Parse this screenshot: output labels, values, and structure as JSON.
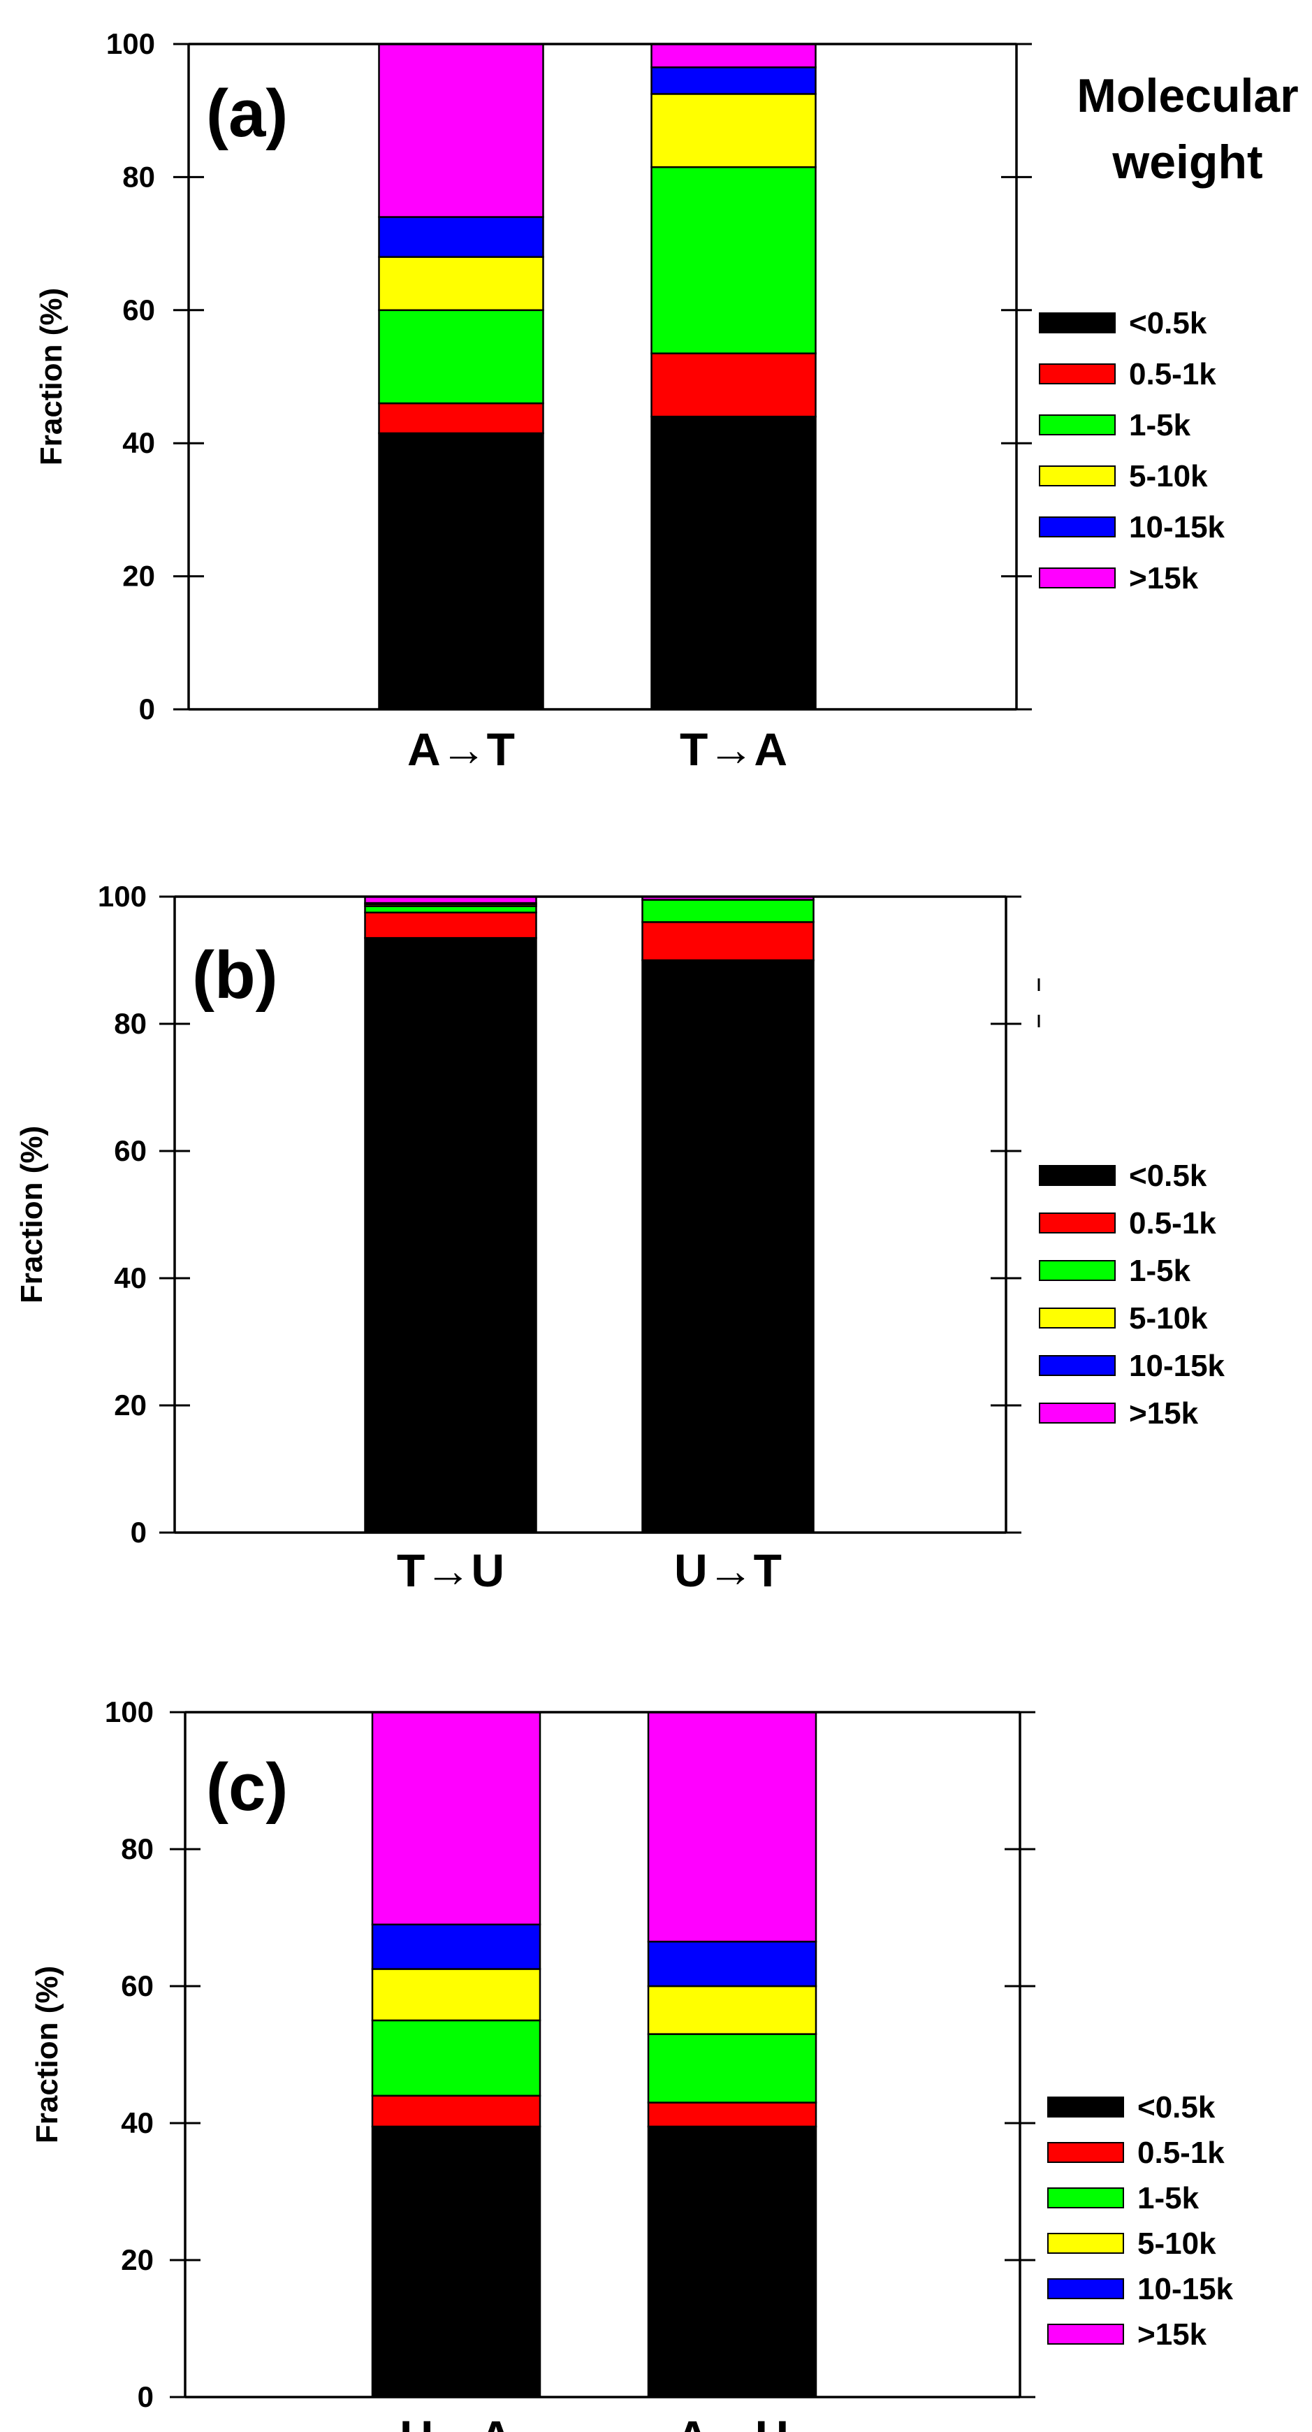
{
  "colors": {
    "<0.5k": "#000000",
    "0.5-1k": "#ff0000",
    "1-5k": "#00ff00",
    "5-10k": "#ffff00",
    "10-15k": "#0000ff",
    ">15k": "#ff00ff"
  },
  "legend_title": "Molecular\nweight",
  "chart_data": [
    {
      "type": "bar",
      "stacked": true,
      "panel_label": "(a)",
      "categories": [
        "A→T",
        "T→A"
      ],
      "ylabel": "Fraction (%)",
      "ylim": [
        0,
        100
      ],
      "yticks": [
        0,
        20,
        40,
        60,
        80,
        100
      ],
      "series": [
        {
          "name": "<0.5k",
          "values": [
            41.5,
            44
          ]
        },
        {
          "name": "0.5-1k",
          "values": [
            4.5,
            9.5
          ]
        },
        {
          "name": "1-5k",
          "values": [
            14,
            28
          ]
        },
        {
          "name": "5-10k",
          "values": [
            8,
            11
          ]
        },
        {
          "name": "10-15k",
          "values": [
            6,
            4
          ]
        },
        {
          "name": ">15k",
          "values": [
            26,
            3.5
          ]
        }
      ]
    },
    {
      "type": "bar",
      "stacked": true,
      "panel_label": "(b)",
      "categories": [
        "T→U",
        "U→T"
      ],
      "ylabel": "Fraction (%)",
      "ylim": [
        0,
        100
      ],
      "yticks": [
        0,
        20,
        40,
        60,
        80,
        100
      ],
      "series": [
        {
          "name": "<0.5k",
          "values": [
            93.5,
            90
          ]
        },
        {
          "name": "0.5-1k",
          "values": [
            4,
            6
          ]
        },
        {
          "name": "1-5k",
          "values": [
            1,
            3.5
          ]
        },
        {
          "name": "5-10k",
          "values": [
            0.3,
            0
          ]
        },
        {
          "name": "10-15k",
          "values": [
            0.2,
            0
          ]
        },
        {
          "name": ">15k",
          "values": [
            1,
            0.5
          ]
        }
      ]
    },
    {
      "type": "bar",
      "stacked": true,
      "panel_label": "(c)",
      "categories": [
        "U→A",
        "A→U"
      ],
      "ylabel": "Fraction (%)",
      "ylim": [
        0,
        100
      ],
      "yticks": [
        0,
        20,
        40,
        60,
        80,
        100
      ],
      "series": [
        {
          "name": "<0.5k",
          "values": [
            39.5,
            39.5
          ]
        },
        {
          "name": "0.5-1k",
          "values": [
            4.5,
            3.5
          ]
        },
        {
          "name": "1-5k",
          "values": [
            11,
            10
          ]
        },
        {
          "name": "5-10k",
          "values": [
            7.5,
            7
          ]
        },
        {
          "name": "10-15k",
          "values": [
            6.5,
            6.5
          ]
        },
        {
          "name": ">15k",
          "values": [
            31,
            33.5
          ]
        }
      ]
    }
  ]
}
